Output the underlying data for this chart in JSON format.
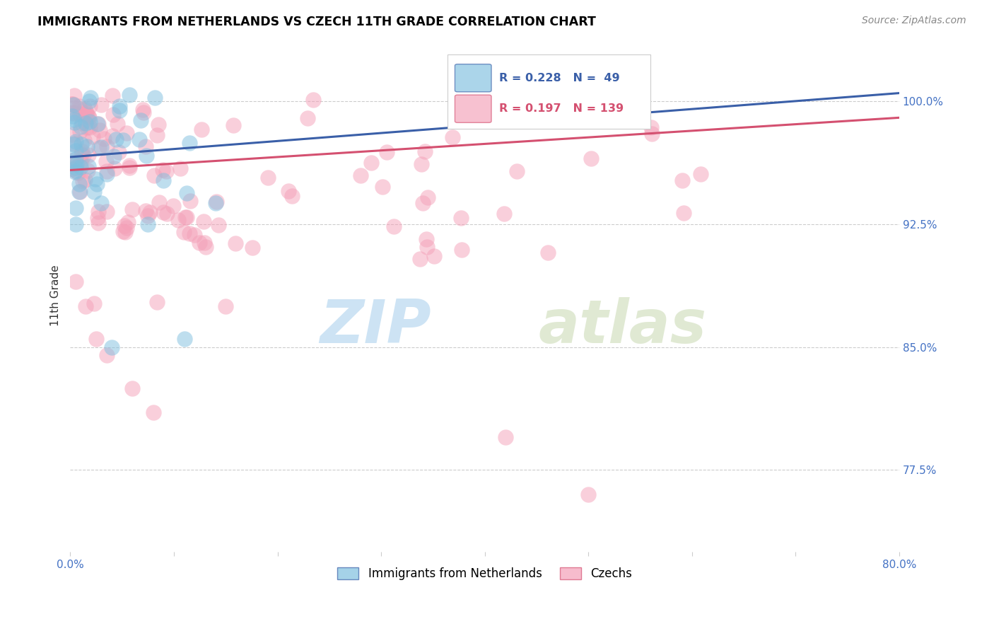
{
  "title": "IMMIGRANTS FROM NETHERLANDS VS CZECH 11TH GRADE CORRELATION CHART",
  "source": "Source: ZipAtlas.com",
  "ylabel": "11th Grade",
  "ytick_labels": [
    "77.5%",
    "85.0%",
    "92.5%",
    "100.0%"
  ],
  "ytick_values": [
    0.775,
    0.85,
    0.925,
    1.0
  ],
  "xlim": [
    0.0,
    0.8
  ],
  "ylim": [
    0.725,
    1.038
  ],
  "legend_R_blue": "R = 0.228",
  "legend_N_blue": "N =  49",
  "legend_R_pink": "R = 0.197",
  "legend_N_pink": "N = 139",
  "legend_blue_label": "Immigrants from Netherlands",
  "legend_pink_label": "Czechs",
  "blue_color": "#7fbfdf",
  "pink_color": "#f4a0b8",
  "trendline_blue": "#3a5fa8",
  "trendline_pink": "#d45070",
  "watermark_text": "ZIP",
  "watermark_text2": "atlas",
  "blue_trendline_x": [
    0.0,
    0.8
  ],
  "blue_trendline_y": [
    0.966,
    1.005
  ],
  "pink_trendline_x": [
    0.0,
    0.8
  ],
  "pink_trendline_y": [
    0.958,
    0.99
  ]
}
